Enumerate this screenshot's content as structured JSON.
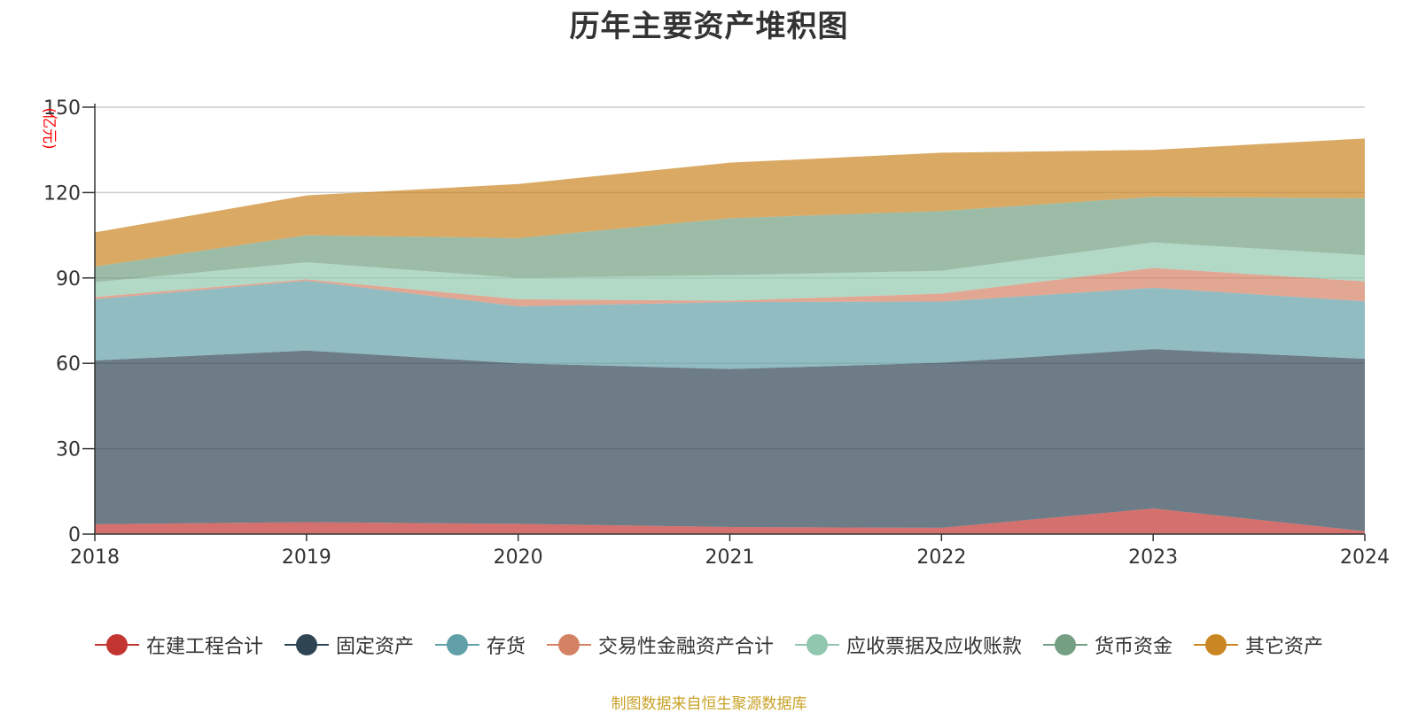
{
  "chart_data": {
    "type": "area",
    "stacked": true,
    "title": "历年主要资产堆积图",
    "unit_label": "(亿元)",
    "x": [
      "2018",
      "2019",
      "2020",
      "2021",
      "2022",
      "2023",
      "2024"
    ],
    "ylim": [
      0,
      150
    ],
    "yticks": [
      "0",
      "30",
      "60",
      "90",
      "120",
      "150"
    ],
    "grid": true,
    "legend_position": "bottom",
    "series": [
      {
        "name": "在建工程合计",
        "color": "#c23531",
        "values": [
          3.5,
          4.2,
          3.6,
          2.5,
          2.2,
          9.0,
          1.0
        ]
      },
      {
        "name": "固定资产",
        "color": "#2f4554",
        "values": [
          57.5,
          60.3,
          56.4,
          55.5,
          58.0,
          56.0,
          60.6
        ]
      },
      {
        "name": "存货",
        "color": "#61a0a8",
        "values": [
          21.5,
          24.5,
          20.0,
          23.5,
          21.5,
          21.5,
          20.2
        ]
      },
      {
        "name": "交易性金融资产合计",
        "color": "#d48265",
        "values": [
          0.8,
          0.5,
          2.5,
          0.5,
          2.8,
          7.0,
          7.0
        ]
      },
      {
        "name": "应收票据及应收账款",
        "color": "#91c7ae",
        "values": [
          5.2,
          6.0,
          7.5,
          9.0,
          8.0,
          9.0,
          9.2
        ]
      },
      {
        "name": "货币资金",
        "color": "#749f83",
        "values": [
          5.5,
          9.5,
          14.0,
          20.0,
          21.0,
          16.0,
          20.0
        ]
      },
      {
        "name": "其它资产",
        "color": "#ca8622",
        "values": [
          12.0,
          14.0,
          19.0,
          19.5,
          20.5,
          16.5,
          21.0
        ]
      }
    ]
  },
  "footer": {
    "source": "制图数据来自恒生聚源数据库"
  }
}
